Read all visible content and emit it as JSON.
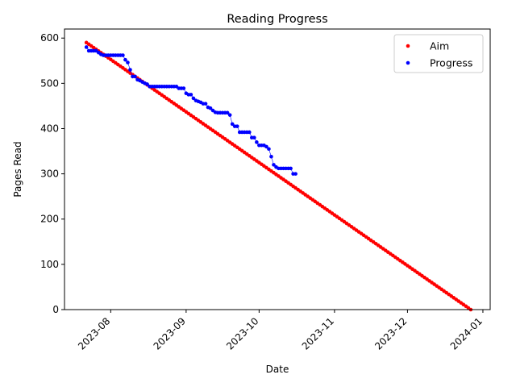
{
  "chart_data": {
    "type": "scatter",
    "title": "Reading Progress",
    "xlabel": "Date",
    "ylabel": "Pages Read",
    "xlim": [
      "2023-07-13",
      "2024-01-04"
    ],
    "ylim": [
      0,
      620
    ],
    "x_ticks": [
      "2023-08",
      "2023-09",
      "2023-10",
      "2023-11",
      "2023-12",
      "2024-01"
    ],
    "y_ticks": [
      0,
      100,
      200,
      300,
      400,
      500,
      600
    ],
    "grid": false,
    "legend_position": "top-right",
    "series": [
      {
        "name": "Aim",
        "color": "#ff0000",
        "line": false,
        "start": [
          "2023-07-22",
          590
        ],
        "end": [
          "2023-12-27",
          0
        ]
      },
      {
        "name": "Progress",
        "color": "#0000ff",
        "line": true,
        "points": [
          [
            "2023-07-22",
            580
          ],
          [
            "2023-07-23",
            572
          ],
          [
            "2023-07-24",
            572
          ],
          [
            "2023-07-25",
            572
          ],
          [
            "2023-07-26",
            572
          ],
          [
            "2023-07-27",
            568
          ],
          [
            "2023-07-28",
            564
          ],
          [
            "2023-07-29",
            562
          ],
          [
            "2023-07-30",
            562
          ],
          [
            "2023-07-31",
            562
          ],
          [
            "2023-08-01",
            562
          ],
          [
            "2023-08-02",
            562
          ],
          [
            "2023-08-03",
            562
          ],
          [
            "2023-08-04",
            562
          ],
          [
            "2023-08-05",
            562
          ],
          [
            "2023-08-06",
            562
          ],
          [
            "2023-08-07",
            552
          ],
          [
            "2023-08-08",
            546
          ],
          [
            "2023-08-09",
            530
          ],
          [
            "2023-08-10",
            515
          ],
          [
            "2023-08-11",
            515
          ],
          [
            "2023-08-12",
            508
          ],
          [
            "2023-08-13",
            506
          ],
          [
            "2023-08-14",
            503
          ],
          [
            "2023-08-15",
            500
          ],
          [
            "2023-08-16",
            498
          ],
          [
            "2023-08-17",
            493
          ],
          [
            "2023-08-18",
            493
          ],
          [
            "2023-08-19",
            493
          ],
          [
            "2023-08-20",
            493
          ],
          [
            "2023-08-21",
            493
          ],
          [
            "2023-08-22",
            493
          ],
          [
            "2023-08-23",
            493
          ],
          [
            "2023-08-24",
            493
          ],
          [
            "2023-08-25",
            493
          ],
          [
            "2023-08-26",
            493
          ],
          [
            "2023-08-27",
            493
          ],
          [
            "2023-08-28",
            493
          ],
          [
            "2023-08-29",
            489
          ],
          [
            "2023-08-30",
            489
          ],
          [
            "2023-08-31",
            489
          ],
          [
            "2023-09-01",
            478
          ],
          [
            "2023-09-02",
            475
          ],
          [
            "2023-09-03",
            475
          ],
          [
            "2023-09-04",
            467
          ],
          [
            "2023-09-05",
            462
          ],
          [
            "2023-09-06",
            460
          ],
          [
            "2023-09-07",
            458
          ],
          [
            "2023-09-08",
            455
          ],
          [
            "2023-09-09",
            455
          ],
          [
            "2023-09-10",
            447
          ],
          [
            "2023-09-11",
            445
          ],
          [
            "2023-09-12",
            440
          ],
          [
            "2023-09-13",
            436
          ],
          [
            "2023-09-14",
            435
          ],
          [
            "2023-09-15",
            435
          ],
          [
            "2023-09-16",
            435
          ],
          [
            "2023-09-17",
            435
          ],
          [
            "2023-09-18",
            435
          ],
          [
            "2023-09-19",
            430
          ],
          [
            "2023-09-20",
            410
          ],
          [
            "2023-09-21",
            405
          ],
          [
            "2023-09-22",
            405
          ],
          [
            "2023-09-23",
            392
          ],
          [
            "2023-09-24",
            392
          ],
          [
            "2023-09-25",
            392
          ],
          [
            "2023-09-26",
            392
          ],
          [
            "2023-09-27",
            392
          ],
          [
            "2023-09-28",
            380
          ],
          [
            "2023-09-29",
            380
          ],
          [
            "2023-09-30",
            370
          ],
          [
            "2023-10-01",
            363
          ],
          [
            "2023-10-02",
            363
          ],
          [
            "2023-10-03",
            363
          ],
          [
            "2023-10-04",
            360
          ],
          [
            "2023-10-05",
            355
          ],
          [
            "2023-10-06",
            338
          ],
          [
            "2023-10-07",
            320
          ],
          [
            "2023-10-08",
            315
          ],
          [
            "2023-10-09",
            312
          ],
          [
            "2023-10-10",
            312
          ],
          [
            "2023-10-11",
            312
          ],
          [
            "2023-10-12",
            312
          ],
          [
            "2023-10-13",
            312
          ],
          [
            "2023-10-14",
            312
          ],
          [
            "2023-10-15",
            300
          ],
          [
            "2023-10-16",
            300
          ]
        ]
      }
    ]
  }
}
